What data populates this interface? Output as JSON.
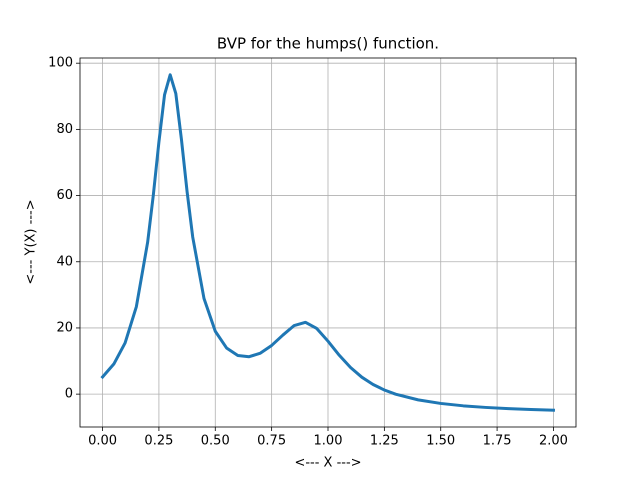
{
  "chart_data": {
    "type": "line",
    "title": "BVP for the humps() function.",
    "x_label": "<--- X --->",
    "y_label": "<--- Y(X) --->",
    "x": [
      0,
      0.05,
      0.1,
      0.15,
      0.2,
      0.225,
      0.25,
      0.275,
      0.3,
      0.325,
      0.35,
      0.375,
      0.4,
      0.45,
      0.5,
      0.55,
      0.6,
      0.65,
      0.7,
      0.75,
      0.8,
      0.85,
      0.9,
      0.95,
      1.0,
      1.05,
      1.1,
      1.15,
      1.2,
      1.25,
      1.3,
      1.4,
      1.5,
      1.6,
      1.7,
      1.8,
      1.9,
      2.0
    ],
    "series": [
      {
        "name": "Y(X)",
        "color": "#1f77b4",
        "values": [
          5.18,
          9.1,
          15.47,
          26.43,
          45.89,
          60.02,
          76.16,
          90.44,
          96.5,
          90.82,
          76.92,
          61.17,
          47.45,
          28.89,
          19,
          13.95,
          11.69,
          11.3,
          12.38,
          14.71,
          17.85,
          20.73,
          21.7,
          19.84,
          16,
          11.75,
          8.04,
          5.12,
          2.91,
          1.25,
          -0.01,
          -1.73,
          -2.81,
          -3.53,
          -4.02,
          -4.38,
          -4.65,
          -4.86
        ]
      }
    ],
    "xlim": [
      -0.1,
      2.1
    ],
    "xticks": [
      {
        "value": 0,
        "label": "0.00"
      },
      {
        "value": 0.25,
        "label": "0.25"
      },
      {
        "value": 0.5,
        "label": "0.50"
      },
      {
        "value": 0.75,
        "label": "0.75"
      },
      {
        "value": 1,
        "label": "1.00"
      },
      {
        "value": 1.25,
        "label": "1.25"
      },
      {
        "value": 1.5,
        "label": "1.50"
      },
      {
        "value": 1.75,
        "label": "1.75"
      },
      {
        "value": 2,
        "label": "2.00"
      }
    ],
    "ylim": [
      -9.93,
      101.57
    ],
    "yticks": [
      0,
      20,
      40,
      60,
      80,
      100
    ],
    "grid": true
  }
}
